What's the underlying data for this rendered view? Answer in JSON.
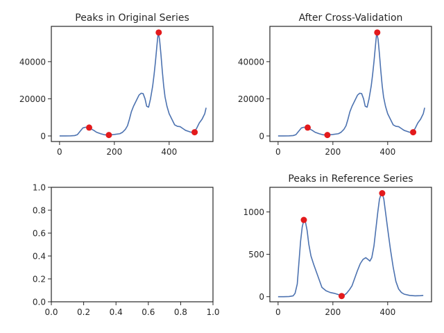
{
  "figure": {
    "line_color": "#4c72b0",
    "marker_color": "#e31a1c",
    "axes_color": "#262626"
  },
  "chart_data": [
    {
      "type": "line",
      "title": "Peaks in Original Series",
      "xlabel": "",
      "ylabel": "",
      "xlim": [
        -30,
        560
      ],
      "ylim": [
        -3000,
        59000
      ],
      "xticks": [
        0,
        200,
        400
      ],
      "yticks": [
        0,
        20000,
        40000
      ],
      "grid": false,
      "series": [
        {
          "x": [
            0,
            20,
            40,
            55,
            65,
            75,
            85,
            95,
            105,
            115,
            125,
            135,
            150,
            165,
            180,
            200,
            220,
            230,
            240,
            248,
            255,
            262,
            270,
            280,
            290,
            298,
            305,
            312,
            318,
            325,
            332,
            340,
            345,
            350,
            355,
            360,
            365,
            370,
            375,
            380,
            385,
            392,
            400,
            410,
            420,
            430,
            440,
            450,
            460,
            470,
            480,
            490,
            500,
            510,
            520,
            530,
            535
          ],
          "y": [
            0,
            0,
            50,
            200,
            700,
            2500,
            4300,
            4700,
            4400,
            3800,
            3000,
            2000,
            1200,
            600,
            500,
            800,
            1200,
            2000,
            3500,
            5500,
            9000,
            13000,
            16000,
            19000,
            22000,
            23000,
            22800,
            20000,
            16000,
            15500,
            20000,
            27000,
            33000,
            40000,
            48000,
            55700,
            52000,
            44000,
            35000,
            27000,
            21000,
            16000,
            12000,
            9000,
            6000,
            5200,
            5000,
            4000,
            3000,
            2500,
            2000,
            2200,
            4000,
            7000,
            9000,
            12000,
            15200
          ]
        }
      ],
      "peaks": {
        "x": [
          108,
          180,
          362,
          493
        ],
        "y": [
          4500,
          500,
          55700,
          2000
        ]
      }
    },
    {
      "type": "line",
      "title": "After Cross-Validation",
      "xlabel": "",
      "ylabel": "",
      "xlim": [
        -30,
        560
      ],
      "ylim": [
        -3000,
        59000
      ],
      "xticks": [
        0,
        200,
        400
      ],
      "yticks": [
        0,
        20000,
        40000
      ],
      "grid": false,
      "series": [
        {
          "x": [
            0,
            20,
            40,
            55,
            65,
            75,
            85,
            95,
            105,
            115,
            125,
            135,
            150,
            165,
            180,
            200,
            220,
            230,
            240,
            248,
            255,
            262,
            270,
            280,
            290,
            298,
            305,
            312,
            318,
            325,
            332,
            340,
            345,
            350,
            355,
            360,
            365,
            370,
            375,
            380,
            385,
            392,
            400,
            410,
            420,
            430,
            440,
            450,
            460,
            470,
            480,
            490,
            500,
            510,
            520,
            530,
            535
          ],
          "y": [
            0,
            0,
            50,
            200,
            700,
            2500,
            4300,
            4700,
            4400,
            3800,
            3000,
            2000,
            1200,
            600,
            500,
            800,
            1200,
            2000,
            3500,
            5500,
            9000,
            13000,
            16000,
            19000,
            22000,
            23000,
            22800,
            20000,
            16000,
            15500,
            20000,
            27000,
            33000,
            40000,
            48000,
            55700,
            52000,
            44000,
            35000,
            27000,
            21000,
            16000,
            12000,
            9000,
            6000,
            5200,
            5000,
            4000,
            3000,
            2500,
            2000,
            2200,
            4000,
            7000,
            9000,
            12000,
            15200
          ]
        }
      ],
      "peaks": {
        "x": [
          108,
          180,
          362,
          493
        ],
        "y": [
          4500,
          500,
          55700,
          2000
        ]
      }
    },
    {
      "type": "line",
      "title": "",
      "xlabel": "",
      "ylabel": "",
      "xlim": [
        0,
        1
      ],
      "ylim": [
        0,
        1
      ],
      "xticks": [
        0.0,
        0.2,
        0.4,
        0.6,
        0.8,
        1.0
      ],
      "yticks": [
        0.0,
        0.2,
        0.4,
        0.6,
        0.8,
        1.0
      ],
      "tick_format": "1dp",
      "grid": false,
      "series": []
    },
    {
      "type": "line",
      "title": "Peaks in Reference Series",
      "xlabel": "",
      "ylabel": "",
      "xlim": [
        -30,
        560
      ],
      "ylim": [
        -60,
        1290
      ],
      "xticks": [
        0,
        200,
        400
      ],
      "yticks": [
        0,
        500,
        1000
      ],
      "grid": false,
      "series": [
        {
          "x": [
            0,
            20,
            40,
            55,
            62,
            70,
            76,
            82,
            88,
            94,
            100,
            106,
            112,
            120,
            130,
            140,
            150,
            160,
            175,
            190,
            205,
            215,
            225,
            232,
            240,
            250,
            260,
            270,
            280,
            290,
            300,
            310,
            320,
            328,
            335,
            342,
            350,
            357,
            364,
            370,
            376,
            380,
            386,
            392,
            400,
            410,
            420,
            430,
            440,
            450,
            460,
            480,
            500,
            520,
            530
          ],
          "y": [
            0,
            0,
            2,
            10,
            40,
            150,
            400,
            650,
            820,
            905,
            880,
            780,
            620,
            480,
            380,
            290,
            200,
            110,
            70,
            50,
            40,
            30,
            20,
            8,
            15,
            40,
            80,
            130,
            220,
            310,
            390,
            440,
            460,
            440,
            420,
            460,
            600,
            800,
            1000,
            1150,
            1210,
            1220,
            1150,
            1000,
            800,
            560,
            350,
            180,
            90,
            50,
            30,
            15,
            10,
            12,
            15
          ]
        }
      ],
      "peaks": {
        "x": [
          94,
          232,
          380
        ],
        "y": [
          905,
          8,
          1220
        ]
      }
    }
  ]
}
